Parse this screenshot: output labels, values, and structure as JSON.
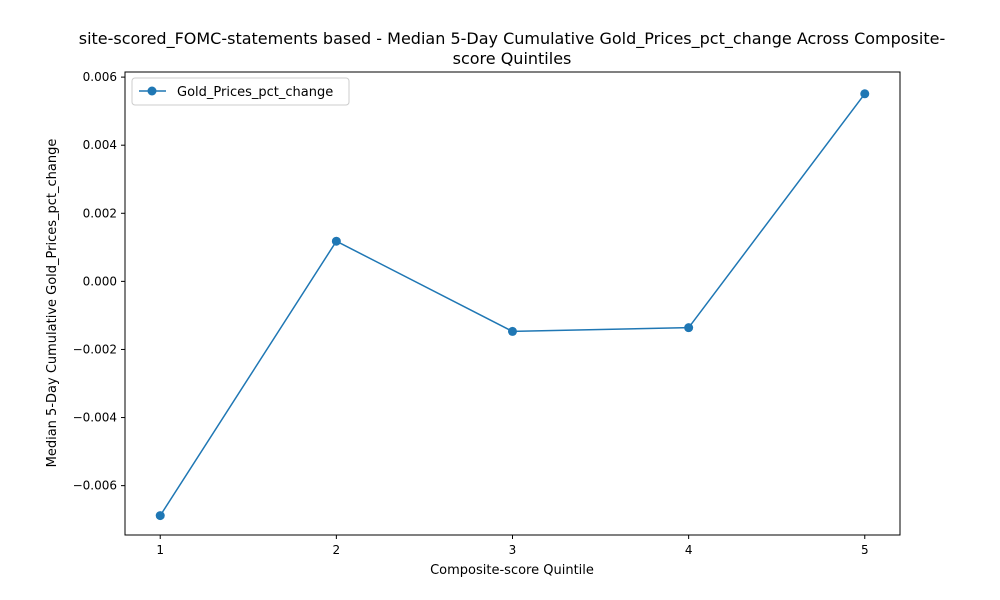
{
  "chart_data": {
    "type": "line",
    "title_lines": [
      "site-scored_FOMC-statements based - Median 5-Day Cumulative Gold_Prices_pct_change Across Composite-",
      "score Quintiles"
    ],
    "xlabel": "Composite-score Quintile",
    "ylabel": "Median 5-Day Cumulative Gold_Prices_pct_change",
    "x": [
      1,
      2,
      3,
      4,
      5
    ],
    "x_ticks": [
      "1",
      "2",
      "3",
      "4",
      "5"
    ],
    "xlim": [
      0.8,
      5.2
    ],
    "ylim": [
      -0.00745,
      0.00615
    ],
    "y_ticks": [
      "−0.006",
      "−0.004",
      "−0.002",
      "0.000",
      "0.002",
      "0.004",
      "0.006"
    ],
    "y_tick_values": [
      -0.006,
      -0.004,
      -0.002,
      0.0,
      0.002,
      0.004,
      0.006
    ],
    "grid": false,
    "legend_position": "top-left",
    "series": [
      {
        "name": "Gold_Prices_pct_change",
        "color": "#1f77b4",
        "marker": "circle",
        "values": [
          -0.00688,
          0.00118,
          -0.00147,
          -0.00136,
          0.00551
        ]
      }
    ]
  }
}
